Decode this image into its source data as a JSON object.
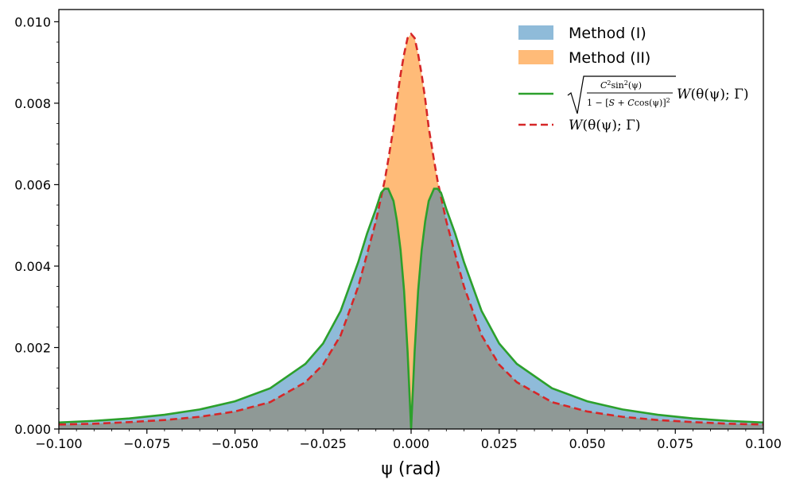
{
  "chart_data": {
    "type": "area",
    "title": "",
    "xlabel": "ψ (rad)",
    "ylabel": "",
    "xlim": [
      -0.1,
      0.1
    ],
    "ylim": [
      0.0,
      0.0103
    ],
    "grid": false,
    "legend_position": "top-right",
    "x_ticks": [
      "−0.100",
      "−0.075",
      "−0.050",
      "−0.025",
      "0.000",
      "0.025",
      "0.050",
      "0.075",
      "0.100"
    ],
    "x_tick_values": [
      -0.1,
      -0.075,
      -0.05,
      -0.025,
      0.0,
      0.025,
      0.05,
      0.075,
      0.1
    ],
    "y_ticks": [
      "0.000",
      "0.002",
      "0.004",
      "0.006",
      "0.008",
      "0.010"
    ],
    "y_tick_values": [
      0.0,
      0.002,
      0.004,
      0.006,
      0.008,
      0.01
    ],
    "series": [
      {
        "name": "Method (I)",
        "kind": "histogram",
        "color": "#1f77b4",
        "x": [
          -0.1,
          -0.09,
          -0.08,
          -0.07,
          -0.06,
          -0.05,
          -0.04,
          -0.03,
          -0.025,
          -0.02,
          -0.015,
          -0.0125,
          -0.01,
          -0.0085,
          -0.0075,
          -0.0065,
          -0.005,
          -0.004,
          -0.003,
          -0.002,
          -0.001,
          0.0,
          0.001,
          0.002,
          0.003,
          0.004,
          0.005,
          0.0065,
          0.0075,
          0.0085,
          0.01,
          0.0125,
          0.015,
          0.02,
          0.025,
          0.03,
          0.04,
          0.05,
          0.06,
          0.07,
          0.08,
          0.09,
          0.1
        ],
        "y": [
          0.00016,
          0.0002,
          0.00026,
          0.00035,
          0.00048,
          0.00068,
          0.001,
          0.0016,
          0.0021,
          0.0029,
          0.0041,
          0.0048,
          0.0054,
          0.0058,
          0.0059,
          0.0059,
          0.0056,
          0.0051,
          0.0044,
          0.0034,
          0.0019,
          0.0,
          0.0019,
          0.0034,
          0.0044,
          0.0051,
          0.0056,
          0.0059,
          0.0059,
          0.0058,
          0.0054,
          0.0048,
          0.0041,
          0.0029,
          0.0021,
          0.0016,
          0.001,
          0.00068,
          0.00048,
          0.00035,
          0.00026,
          0.0002,
          0.00016
        ]
      },
      {
        "name": "Method (II)",
        "kind": "histogram",
        "color": "#ff7f0e",
        "x": [
          -0.1,
          -0.09,
          -0.08,
          -0.07,
          -0.06,
          -0.05,
          -0.04,
          -0.03,
          -0.025,
          -0.02,
          -0.015,
          -0.0125,
          -0.01,
          -0.0085,
          -0.0075,
          -0.0065,
          -0.005,
          -0.004,
          -0.003,
          -0.002,
          -0.001,
          0.0,
          0.001,
          0.002,
          0.003,
          0.004,
          0.005,
          0.0065,
          0.0075,
          0.0085,
          0.01,
          0.0125,
          0.015,
          0.02,
          0.025,
          0.03,
          0.04,
          0.05,
          0.06,
          0.07,
          0.08,
          0.09,
          0.1
        ],
        "y": [
          0.00011,
          0.00013,
          0.00017,
          0.00022,
          0.0003,
          0.00043,
          0.00066,
          0.00115,
          0.00158,
          0.0023,
          0.0035,
          0.0043,
          0.0051,
          0.0057,
          0.0061,
          0.0066,
          0.0074,
          0.0081,
          0.0087,
          0.0092,
          0.0096,
          0.0097,
          0.0096,
          0.0092,
          0.0087,
          0.0081,
          0.0074,
          0.0066,
          0.0061,
          0.0057,
          0.0051,
          0.0043,
          0.0035,
          0.0023,
          0.00158,
          0.00115,
          0.00066,
          0.00043,
          0.0003,
          0.00022,
          0.00017,
          0.00013,
          0.00011
        ]
      },
      {
        "name": "sqrt(C^2 sin^2(ψ) / (1 − [S + C cos(ψ)]^2)) W(θ(ψ); Γ)",
        "kind": "line",
        "color": "#2ca02c",
        "dash": "solid",
        "x": [
          -0.1,
          -0.09,
          -0.08,
          -0.07,
          -0.06,
          -0.05,
          -0.04,
          -0.03,
          -0.025,
          -0.02,
          -0.015,
          -0.0125,
          -0.01,
          -0.0085,
          -0.0075,
          -0.0065,
          -0.005,
          -0.004,
          -0.003,
          -0.002,
          -0.001,
          0.0,
          0.001,
          0.002,
          0.003,
          0.004,
          0.005,
          0.0065,
          0.0075,
          0.0085,
          0.01,
          0.0125,
          0.015,
          0.02,
          0.025,
          0.03,
          0.04,
          0.05,
          0.06,
          0.07,
          0.08,
          0.09,
          0.1
        ],
        "y": [
          0.00016,
          0.0002,
          0.00026,
          0.00035,
          0.00048,
          0.00068,
          0.001,
          0.0016,
          0.0021,
          0.0029,
          0.0041,
          0.0048,
          0.0054,
          0.0058,
          0.0059,
          0.0059,
          0.0056,
          0.0051,
          0.0044,
          0.0034,
          0.0019,
          0.0,
          0.0019,
          0.0034,
          0.0044,
          0.0051,
          0.0056,
          0.0059,
          0.0059,
          0.0058,
          0.0054,
          0.0048,
          0.0041,
          0.0029,
          0.0021,
          0.0016,
          0.001,
          0.00068,
          0.00048,
          0.00035,
          0.00026,
          0.0002,
          0.00016
        ]
      },
      {
        "name": "W(θ(ψ); Γ)",
        "kind": "line",
        "color": "#d62728",
        "dash": "dashed",
        "x": [
          -0.1,
          -0.09,
          -0.08,
          -0.07,
          -0.06,
          -0.05,
          -0.04,
          -0.03,
          -0.025,
          -0.02,
          -0.015,
          -0.0125,
          -0.01,
          -0.0085,
          -0.0075,
          -0.0065,
          -0.005,
          -0.004,
          -0.003,
          -0.002,
          -0.001,
          0.0,
          0.001,
          0.002,
          0.003,
          0.004,
          0.005,
          0.0065,
          0.0075,
          0.0085,
          0.01,
          0.0125,
          0.015,
          0.02,
          0.025,
          0.03,
          0.04,
          0.05,
          0.06,
          0.07,
          0.08,
          0.09,
          0.1
        ],
        "y": [
          0.00011,
          0.00013,
          0.00017,
          0.00022,
          0.0003,
          0.00043,
          0.00066,
          0.00115,
          0.00158,
          0.0023,
          0.0035,
          0.0043,
          0.0051,
          0.0057,
          0.0061,
          0.0066,
          0.0074,
          0.0081,
          0.0087,
          0.0092,
          0.0096,
          0.0097,
          0.0096,
          0.0092,
          0.0087,
          0.0081,
          0.0074,
          0.0066,
          0.0061,
          0.0057,
          0.0051,
          0.0043,
          0.0035,
          0.0023,
          0.00158,
          0.00115,
          0.00066,
          0.00043,
          0.0003,
          0.00022,
          0.00017,
          0.00013,
          0.00011
        ]
      }
    ],
    "legend": {
      "method1": "Method (I)",
      "method2": "Method (II)",
      "green_pre": "C",
      "green_sup2": "2",
      "green_sin": "sin",
      "green_sup2b": "2",
      "green_psi": "(ψ)",
      "green_den1": "1 − [",
      "green_den_S": "S",
      "green_den2": " + ",
      "green_den_C": "C",
      "green_den3": "cos(ψ)]",
      "green_den_sup": "2",
      "green_tail_W": "W",
      "green_tail_rest": "(θ(ψ); Γ)",
      "red_W": "W",
      "red_rest": "(θ(ψ); Γ)"
    }
  }
}
